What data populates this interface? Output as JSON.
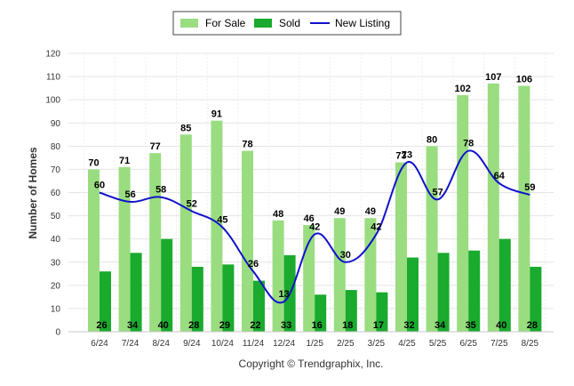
{
  "chart_data": {
    "type": "bar",
    "categories": [
      "6/24",
      "7/24",
      "8/24",
      "9/24",
      "10/24",
      "11/24",
      "12/24",
      "1/25",
      "2/25",
      "3/25",
      "4/25",
      "5/25",
      "6/25",
      "7/25",
      "8/25"
    ],
    "series": [
      {
        "name": "For Sale",
        "kind": "bar",
        "color": "#99dd80",
        "values": [
          70,
          71,
          77,
          85,
          91,
          78,
          48,
          46,
          49,
          49,
          73,
          80,
          102,
          107,
          106
        ]
      },
      {
        "name": "Sold",
        "kind": "bar",
        "color": "#1aaa2e",
        "values": [
          26,
          34,
          40,
          28,
          29,
          22,
          33,
          16,
          18,
          17,
          32,
          34,
          35,
          40,
          28
        ]
      },
      {
        "name": "New Listing",
        "kind": "line",
        "color": "#1111cc",
        "values": [
          60,
          56,
          58,
          52,
          45,
          26,
          13,
          42,
          30,
          42,
          73,
          57,
          78,
          64,
          59
        ]
      }
    ],
    "ylabel": "Number of Homes",
    "xlabel": "",
    "ylim": [
      0,
      120
    ],
    "yticks": [
      0,
      10,
      20,
      30,
      40,
      50,
      60,
      70,
      80,
      90,
      100,
      110,
      120
    ],
    "grid": true,
    "legend_position": "top-center",
    "credit": "Copyright © Trendgraphix, Inc."
  }
}
